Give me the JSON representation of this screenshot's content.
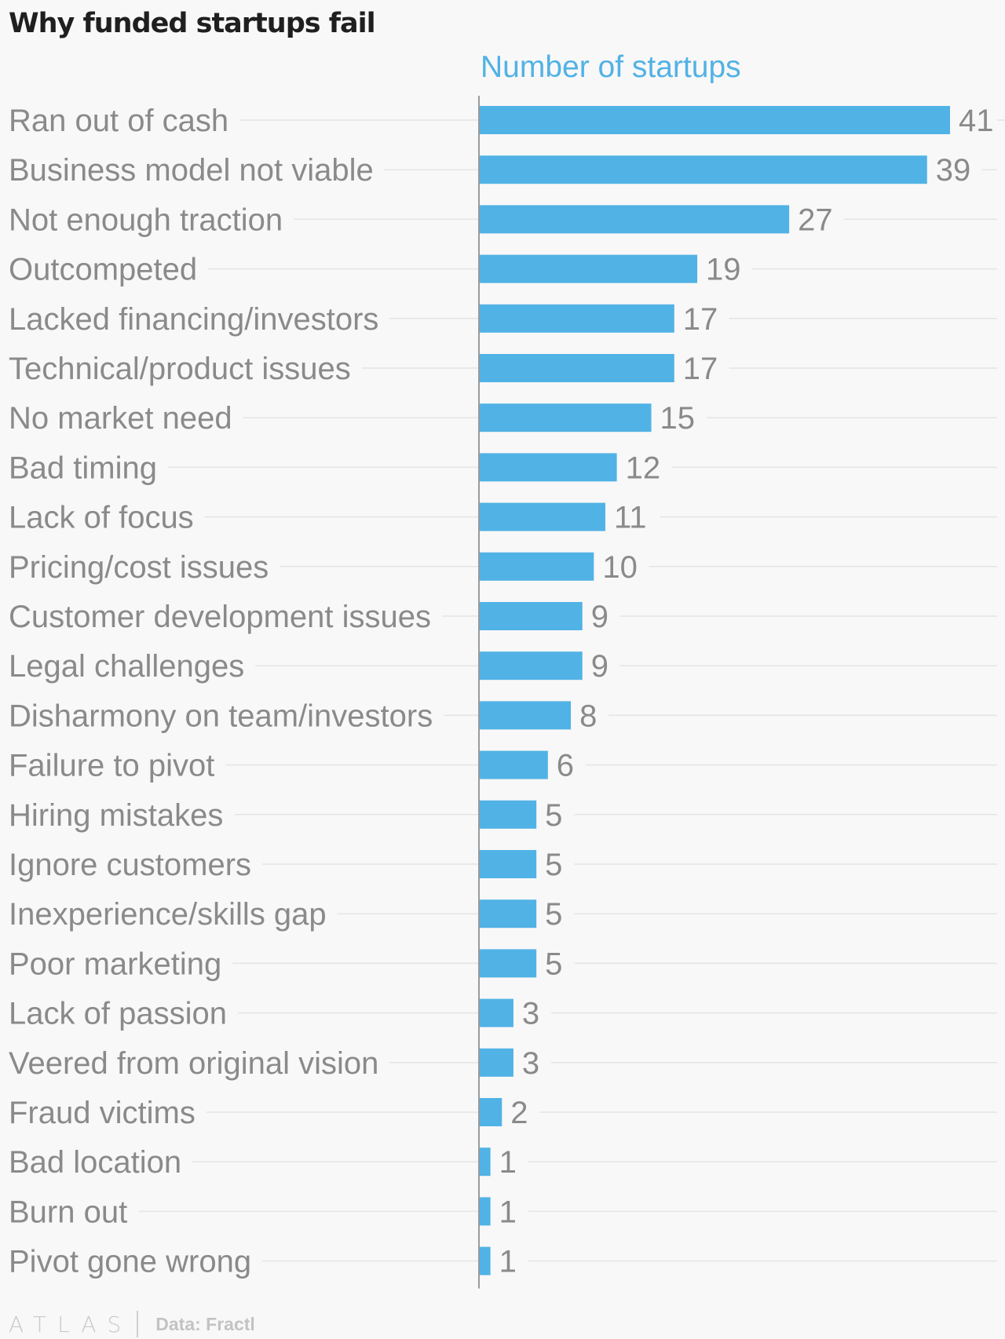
{
  "chart_data": {
    "type": "bar",
    "orientation": "horizontal",
    "title": "Why funded startups fail",
    "series": [
      {
        "name": "Number of startups",
        "values": [
          41,
          39,
          27,
          19,
          17,
          17,
          15,
          12,
          11,
          10,
          9,
          9,
          8,
          6,
          5,
          5,
          5,
          5,
          3,
          3,
          2,
          1,
          1,
          1
        ]
      }
    ],
    "categories": [
      "Ran out of cash",
      "Business model not viable",
      "Not enough traction",
      "Outcompeted",
      "Lacked financing/investors",
      "Technical/product issues",
      "No market need",
      "Bad timing",
      "Lack of focus",
      "Pricing/cost issues",
      "Customer development issues",
      "Legal challenges",
      "Disharmony on team/investors",
      "Failure to pivot",
      "Hiring mistakes",
      "Ignore customers",
      "Inexperience/skills gap",
      "Poor marketing",
      "Lack of passion",
      "Veered from original vision",
      "Fraud victims",
      "Bad location",
      "Burn out",
      "Pivot gone wrong"
    ],
    "xlim": [
      0,
      41
    ],
    "grid": true,
    "bar_color": "#51b2e5"
  },
  "footer": {
    "logo": "ATLAS",
    "source": "Data: Fractl"
  }
}
